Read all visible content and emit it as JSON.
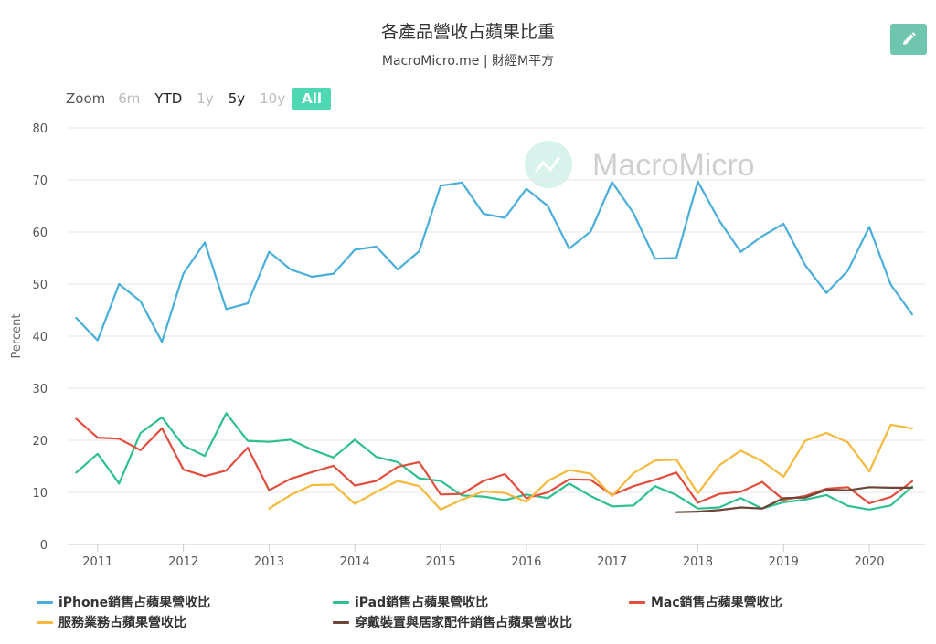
{
  "header": {
    "title": "各產品營收占蘋果比重",
    "subtitle": "MacroMicro.me | 財經M平方"
  },
  "zoom": {
    "label": "Zoom",
    "buttons": [
      {
        "label": "6m",
        "state": "disabled"
      },
      {
        "label": "YTD",
        "state": "enabled"
      },
      {
        "label": "1y",
        "state": "disabled"
      },
      {
        "label": "5y",
        "state": "enabled"
      },
      {
        "label": "10y",
        "state": "disabled"
      },
      {
        "label": "All",
        "state": "active"
      }
    ]
  },
  "icons": {
    "edit": "pencil-icon",
    "watermark_logo": "macromicro-logo-icon"
  },
  "watermark": {
    "text": "MacroMicro"
  },
  "colors": {
    "accent": "#4fd8b4",
    "edit_button": "#6fc5ad",
    "grid": "#e6e6e6",
    "watermark": "#cfcfcf"
  },
  "chart_data": {
    "type": "line",
    "title": "各產品營收占蘋果比重",
    "subtitle": "MacroMicro.me | 財經M平方",
    "ylabel": "Percent",
    "xlabel": "",
    "ylim": [
      0,
      80
    ],
    "yticks": [
      0,
      10,
      20,
      30,
      40,
      50,
      60,
      70,
      80
    ],
    "xlim": [
      2010.65,
      2020.65
    ],
    "xticks": [
      2011,
      2012,
      2013,
      2014,
      2015,
      2016,
      2017,
      2018,
      2019,
      2020
    ],
    "x_unit": "year",
    "grid": "horizontal",
    "legend": "bottom",
    "series": [
      {
        "name": "iPhone銷售占蘋果營收比",
        "color": "#4aaedb",
        "x": [
          2010.75,
          2011.0,
          2011.25,
          2011.5,
          2011.75,
          2012.0,
          2012.25,
          2012.5,
          2012.75,
          2013.0,
          2013.25,
          2013.5,
          2013.75,
          2014.0,
          2014.25,
          2014.5,
          2014.75,
          2015.0,
          2015.25,
          2015.5,
          2015.75,
          2016.0,
          2016.25,
          2016.5,
          2016.75,
          2017.0,
          2017.25,
          2017.5,
          2017.75,
          2018.0,
          2018.25,
          2018.5,
          2018.75,
          2019.0,
          2019.25,
          2019.5,
          2019.75,
          2020.0,
          2020.25,
          2020.5
        ],
        "values": [
          43.5,
          39.2,
          50.0,
          46.7,
          38.9,
          52.0,
          58.0,
          45.2,
          46.3,
          56.2,
          52.8,
          51.4,
          52.0,
          56.6,
          57.2,
          52.8,
          56.3,
          68.9,
          69.5,
          63.5,
          62.7,
          68.3,
          65.0,
          56.8,
          60.1,
          69.6,
          63.6,
          54.9,
          55.0,
          69.7,
          62.2,
          56.2,
          59.2,
          61.6,
          53.7,
          48.3,
          52.6,
          61.0,
          49.9,
          44.2
        ]
      },
      {
        "name": "iPad銷售占蘋果營收比",
        "color": "#2fbf8f",
        "x": [
          2010.75,
          2011.0,
          2011.25,
          2011.5,
          2011.75,
          2012.0,
          2012.25,
          2012.5,
          2012.75,
          2013.0,
          2013.25,
          2013.5,
          2013.75,
          2014.0,
          2014.25,
          2014.5,
          2014.75,
          2015.0,
          2015.25,
          2015.5,
          2015.75,
          2016.0,
          2016.25,
          2016.5,
          2016.75,
          2017.0,
          2017.25,
          2017.5,
          2017.75,
          2018.0,
          2018.25,
          2018.5,
          2018.75,
          2019.0,
          2019.25,
          2019.5,
          2019.75,
          2020.0,
          2020.25,
          2020.5
        ],
        "values": [
          13.8,
          17.4,
          11.7,
          21.4,
          24.4,
          19.0,
          17.0,
          25.2,
          19.9,
          19.7,
          20.1,
          18.2,
          16.7,
          20.1,
          16.8,
          15.8,
          12.7,
          12.2,
          9.4,
          9.2,
          8.5,
          9.6,
          8.9,
          11.7,
          9.3,
          7.3,
          7.5,
          11.2,
          9.5,
          6.9,
          7.1,
          8.9,
          6.9,
          8.1,
          8.6,
          9.5,
          7.4,
          6.7,
          7.5,
          11.1
        ]
      },
      {
        "name": "Mac銷售占蘋果營收比",
        "color": "#e04e3d",
        "x": [
          2010.75,
          2011.0,
          2011.25,
          2011.5,
          2011.75,
          2012.0,
          2012.25,
          2012.5,
          2012.75,
          2013.0,
          2013.25,
          2013.5,
          2013.75,
          2014.0,
          2014.25,
          2014.5,
          2014.75,
          2015.0,
          2015.25,
          2015.5,
          2015.75,
          2016.0,
          2016.25,
          2016.5,
          2016.75,
          2017.0,
          2017.25,
          2017.5,
          2017.75,
          2018.0,
          2018.25,
          2018.5,
          2018.75,
          2019.0,
          2019.25,
          2019.5,
          2019.75,
          2020.0,
          2020.25,
          2020.5
        ],
        "values": [
          24.1,
          20.5,
          20.3,
          18.1,
          22.3,
          14.4,
          13.1,
          14.2,
          18.6,
          10.4,
          12.6,
          13.9,
          15.1,
          11.3,
          12.2,
          14.9,
          15.8,
          9.6,
          9.7,
          12.2,
          13.5,
          8.9,
          10.0,
          12.5,
          12.4,
          9.5,
          11.2,
          12.4,
          13.8,
          8.0,
          9.7,
          10.1,
          12.0,
          8.6,
          9.3,
          10.7,
          11.0,
          7.9,
          9.1,
          12.1
        ]
      },
      {
        "name": "服務業務占蘋果營收比",
        "color": "#f5b93d",
        "x": [
          2013.0,
          2013.25,
          2013.5,
          2013.75,
          2014.0,
          2014.25,
          2014.5,
          2014.75,
          2015.0,
          2015.25,
          2015.5,
          2015.75,
          2016.0,
          2016.25,
          2016.5,
          2016.75,
          2017.0,
          2017.25,
          2017.5,
          2017.75,
          2018.0,
          2018.25,
          2018.5,
          2018.75,
          2019.0,
          2019.25,
          2019.5,
          2019.75,
          2020.0,
          2020.25,
          2020.5
        ],
        "values": [
          6.9,
          9.5,
          11.4,
          11.5,
          7.8,
          10.1,
          12.2,
          11.2,
          6.7,
          8.6,
          10.2,
          9.9,
          8.2,
          12.2,
          14.3,
          13.6,
          9.3,
          13.7,
          16.1,
          16.3,
          9.8,
          15.2,
          18.0,
          16.0,
          13.0,
          19.9,
          21.4,
          19.6,
          14.0,
          23.0,
          22.3
        ]
      },
      {
        "name": "穿戴裝置與居家配件銷售占蘋果營收比",
        "color": "#6b4538",
        "x": [
          2017.75,
          2018.0,
          2018.25,
          2018.5,
          2018.75,
          2019.0,
          2019.25,
          2019.5,
          2019.75,
          2020.0,
          2020.25,
          2020.5
        ],
        "values": [
          6.2,
          6.3,
          6.6,
          7.1,
          6.9,
          8.9,
          9.0,
          10.5,
          10.4,
          11.0,
          10.9,
          10.9
        ]
      }
    ]
  }
}
